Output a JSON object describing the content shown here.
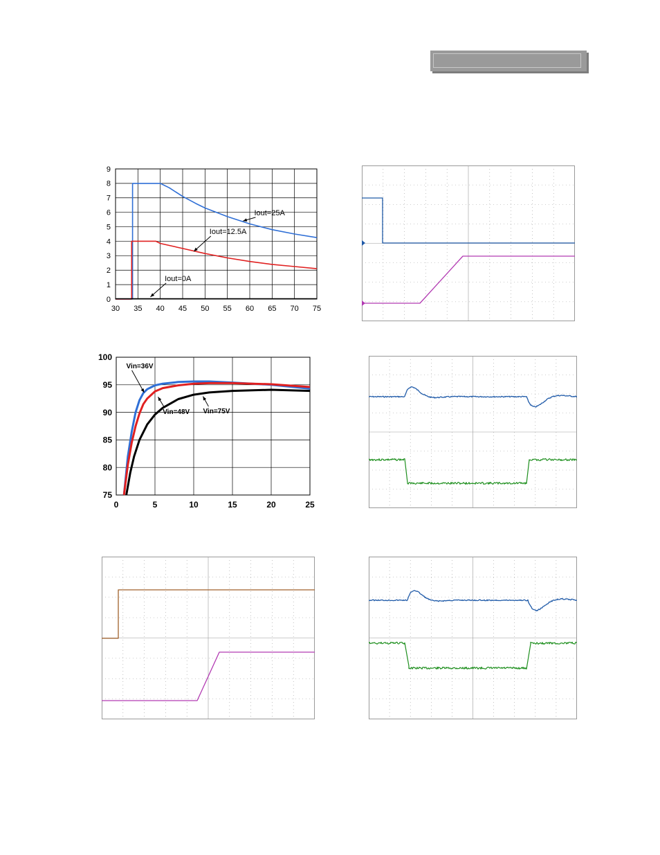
{
  "colors": {
    "blue": "#2f6fd6",
    "red": "#e02020",
    "black": "#000000",
    "scope_blue": "#1f5aa8",
    "scope_magenta": "#b23ab2",
    "scope_green": "#1e8f1e",
    "scope_brown": "#a0602a",
    "grid": "#000000",
    "scope_grid": "#9a9a9a",
    "header_bar": "#9a9a9a"
  },
  "chart_data": [
    {
      "id": "derating",
      "type": "line",
      "title": "",
      "xlabel": "",
      "ylabel": "",
      "xlim": [
        30,
        75
      ],
      "ylim": [
        0,
        9
      ],
      "xticks": [
        "30",
        "35",
        "40",
        "45",
        "50",
        "55",
        "60",
        "65",
        "70",
        "75"
      ],
      "yticks": [
        "0",
        "1",
        "2",
        "3",
        "4",
        "5",
        "6",
        "7",
        "8",
        "9"
      ],
      "grid": true,
      "series": [
        {
          "name": "Iout=25A",
          "color": "blue",
          "x": [
            30,
            33.8,
            33.8,
            34.8,
            35.2,
            35.2,
            39,
            40,
            42,
            45,
            48,
            50,
            55,
            60,
            65,
            70,
            75
          ],
          "y": [
            0,
            0,
            8,
            8,
            8,
            8,
            8,
            8,
            7.7,
            7.1,
            6.6,
            6.3,
            5.7,
            5.2,
            4.8,
            4.5,
            4.25
          ]
        },
        {
          "name": "Iout=12.5A",
          "color": "red",
          "x": [
            30,
            33.6,
            33.6,
            35.3,
            35.3,
            39,
            40,
            45,
            50,
            55,
            60,
            65,
            70,
            75
          ],
          "y": [
            0,
            0,
            4,
            4,
            4,
            4,
            3.85,
            3.5,
            3.15,
            2.85,
            2.6,
            2.4,
            2.25,
            2.1
          ]
        },
        {
          "name": "Iout=0A",
          "color": "black",
          "x": [
            30,
            35,
            40,
            45,
            50,
            55,
            60,
            65,
            70,
            75
          ],
          "y": [
            0.02,
            0.02,
            0.02,
            0.02,
            0.02,
            0.02,
            0.02,
            0.02,
            0.02,
            0.02
          ]
        }
      ],
      "annotations": [
        {
          "text": "Iout=25A",
          "x": 61,
          "y": 5.8,
          "arrow_to": [
            58.5,
            5.4
          ]
        },
        {
          "text": "Iout=12.5A",
          "x": 51,
          "y": 4.5,
          "arrow_to": [
            47.5,
            3.3
          ]
        },
        {
          "text": "Iout=0A",
          "x": 41,
          "y": 1.25,
          "arrow_to": [
            37.8,
            0.15
          ]
        }
      ]
    },
    {
      "id": "efficiency",
      "type": "line",
      "title": "",
      "xlabel": "",
      "ylabel": "",
      "xlim": [
        0,
        25
      ],
      "ylim": [
        75,
        100
      ],
      "xticks": [
        "0",
        "5",
        "10",
        "15",
        "20",
        "25"
      ],
      "yticks": [
        "75",
        "80",
        "85",
        "90",
        "95",
        "100"
      ],
      "grid": true,
      "series": [
        {
          "name": "Vin=36V",
          "color": "blue",
          "x": [
            1,
            1.5,
            2,
            2.5,
            3,
            3.5,
            4,
            5,
            6,
            8,
            10,
            12,
            15,
            20,
            25
          ],
          "y": [
            75,
            82,
            86.5,
            90,
            92.2,
            93.5,
            94.2,
            94.9,
            95.2,
            95.5,
            95.6,
            95.6,
            95.4,
            95,
            94.3
          ]
        },
        {
          "name": "Vin=48V",
          "color": "red",
          "x": [
            1,
            1.5,
            2,
            2.5,
            3,
            3.5,
            4,
            5,
            6,
            8,
            10,
            12,
            15,
            20,
            25
          ],
          "y": [
            75,
            80.5,
            84.5,
            87.5,
            89.8,
            91.5,
            92.5,
            93.8,
            94.4,
            94.9,
            95.2,
            95.3,
            95.3,
            95.1,
            94.6
          ]
        },
        {
          "name": "Vin=75V",
          "color": "black",
          "x": [
            1.3,
            1.8,
            2.3,
            3,
            4,
            5,
            6,
            8,
            10,
            12,
            15,
            20,
            25
          ],
          "y": [
            75,
            79,
            82,
            85,
            87.8,
            89.6,
            90.8,
            92.4,
            93.2,
            93.6,
            93.9,
            94.1,
            93.9
          ]
        }
      ],
      "annotations": [
        {
          "text": "Vin=36V",
          "x": 1.3,
          "y": 98,
          "arrow_to": [
            3.6,
            93.6
          ]
        },
        {
          "text": "Vin=48V",
          "x": 6,
          "y": 89.7,
          "arrow_to": [
            5.4,
            92.8
          ]
        },
        {
          "text": "Vin=75V",
          "x": 11.2,
          "y": 89.8,
          "arrow_to": [
            11.2,
            92.9
          ]
        }
      ]
    }
  ]
}
